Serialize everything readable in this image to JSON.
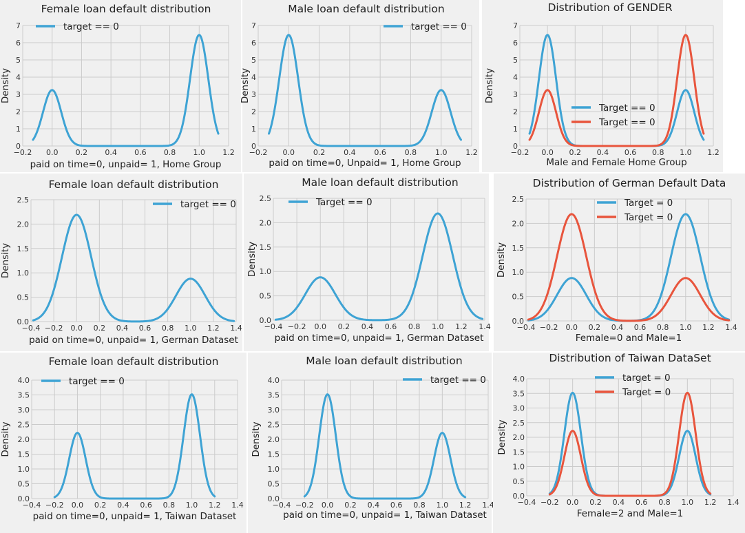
{
  "chart_data": [
    {
      "type": "line",
      "title": "Female loan  default distribution",
      "xlabel": "paid on time=0, unpaid= 1,  Home Group",
      "ylabel": "Density",
      "xlim": [
        -0.2,
        1.2
      ],
      "ylim": [
        0,
        7
      ],
      "xticks": [
        "−0.2",
        "0.0",
        "0.2",
        "0.4",
        "0.6",
        "0.8",
        "1.0",
        "1.2"
      ],
      "yticks": [
        "0",
        "1",
        "2",
        "3",
        "4",
        "5",
        "6",
        "7"
      ],
      "legend_position": "upper-left",
      "series": [
        {
          "name": "target == 0",
          "color": "#3ea3d4",
          "peaks": [
            {
              "x": 0,
              "y": 3.25
            },
            {
              "x": 1,
              "y": 6.45
            }
          ],
          "sigma": 0.062,
          "x_range": [
            -0.13,
            1.13
          ]
        }
      ]
    },
    {
      "type": "line",
      "title": "Male loan  default distribution",
      "xlabel": "paid on time=0, Unpaid= 1,  Home Group",
      "ylabel": "Density",
      "xlim": [
        -0.2,
        1.2
      ],
      "ylim": [
        0,
        7
      ],
      "xticks": [
        "−0.2",
        "0.0",
        "0.2",
        "0.4",
        "0.6",
        "0.8",
        "1.0",
        "1.2"
      ],
      "yticks": [
        "0",
        "1",
        "2",
        "3",
        "4",
        "5",
        "6",
        "7"
      ],
      "legend_position": "upper-right",
      "series": [
        {
          "name": "target == 0",
          "color": "#3ea3d4",
          "peaks": [
            {
              "x": 0,
              "y": 6.45
            },
            {
              "x": 1,
              "y": 3.25
            }
          ],
          "sigma": 0.062,
          "x_range": [
            -0.13,
            1.13
          ]
        }
      ]
    },
    {
      "type": "line",
      "title": "Distribution of GENDER",
      "xlabel": "Male and Female Home Group",
      "ylabel": "Density",
      "xlim": [
        -0.2,
        1.2
      ],
      "ylim": [
        0,
        7
      ],
      "xticks": [
        "−0.2",
        "0.0",
        "0.2",
        "0.4",
        "0.6",
        "0.8",
        "1.0",
        "1.2"
      ],
      "yticks": [
        "0",
        "1",
        "2",
        "3",
        "4",
        "5",
        "6",
        "7"
      ],
      "legend_position": "lower-center",
      "series": [
        {
          "name": "Target == 0",
          "color": "#3ea3d4",
          "peaks": [
            {
              "x": 0,
              "y": 6.45
            },
            {
              "x": 1,
              "y": 3.25
            }
          ],
          "sigma": 0.062,
          "x_range": [
            -0.13,
            1.13
          ]
        },
        {
          "name": "Target == 0",
          "color": "#e8553d",
          "peaks": [
            {
              "x": 0,
              "y": 3.25
            },
            {
              "x": 1,
              "y": 6.45
            }
          ],
          "sigma": 0.062,
          "x_range": [
            -0.13,
            1.13
          ]
        }
      ]
    },
    {
      "type": "line",
      "title": "Female loan  default distribution",
      "xlabel": "paid on time=0, unpaid= 1, German Dataset",
      "ylabel": "Density",
      "xlim": [
        -0.4,
        1.4
      ],
      "ylim": [
        0,
        2.5
      ],
      "xticks": [
        "−0.4",
        "−0.2",
        "0.0",
        "0.2",
        "0.4",
        "0.6",
        "0.8",
        "1.0",
        "1.2",
        "1.4"
      ],
      "yticks": [
        "0.0",
        "0.5",
        "1.0",
        "1.5",
        "2.0",
        "2.5"
      ],
      "legend_position": "upper-right",
      "series": [
        {
          "name": "target == 0",
          "color": "#3ea3d4",
          "peaks": [
            {
              "x": 0,
              "y": 2.19
            },
            {
              "x": 1,
              "y": 0.88
            }
          ],
          "sigma": 0.128,
          "x_range": [
            -0.38,
            1.38
          ]
        }
      ]
    },
    {
      "type": "line",
      "title": "Male loan  default distribution",
      "xlabel": "paid on time=0, unpaid= 1,  German Dataset",
      "ylabel": "Density",
      "xlim": [
        -0.4,
        1.4
      ],
      "ylim": [
        0,
        2.5
      ],
      "xticks": [
        "−0.4",
        "−0.2",
        "0.0",
        "0.2",
        "0.4",
        "0.6",
        "0.8",
        "1.0",
        "1.2",
        "1.4"
      ],
      "yticks": [
        "0.0",
        "0.5",
        "1.0",
        "1.5",
        "2.0",
        "2.5"
      ],
      "legend_position": "upper-left",
      "series": [
        {
          "name": "Target == 0",
          "color": "#3ea3d4",
          "peaks": [
            {
              "x": 0,
              "y": 0.88
            },
            {
              "x": 1,
              "y": 2.19
            }
          ],
          "sigma": 0.128,
          "x_range": [
            -0.38,
            1.38
          ]
        }
      ]
    },
    {
      "type": "line",
      "title": "Distribution of German Default Data",
      "xlabel": "Female=0 and Male=1",
      "ylabel": "Density",
      "xlim": [
        -0.4,
        1.4
      ],
      "ylim": [
        0,
        2.5
      ],
      "xticks": [
        "−0.4",
        "−0.2",
        "0.0",
        "0.2",
        "0.4",
        "0.6",
        "0.8",
        "1.0",
        "1.2",
        "1.4"
      ],
      "yticks": [
        "0.0",
        "0.5",
        "1.0",
        "1.5",
        "2.0",
        "2.5"
      ],
      "legend_position": "upper-center",
      "series": [
        {
          "name": "Target = 0",
          "color": "#3ea3d4",
          "peaks": [
            {
              "x": 0,
              "y": 0.88
            },
            {
              "x": 1,
              "y": 2.19
            }
          ],
          "sigma": 0.128,
          "x_range": [
            -0.38,
            1.38
          ]
        },
        {
          "name": "Target = 0",
          "color": "#e8553d",
          "peaks": [
            {
              "x": 0,
              "y": 2.19
            },
            {
              "x": 1,
              "y": 0.88
            }
          ],
          "sigma": 0.128,
          "x_range": [
            -0.38,
            1.38
          ]
        }
      ]
    },
    {
      "type": "line",
      "title": "Female loan  default distribution",
      "xlabel": "paid on time=0, unpaid= 1,  Taiwan Dataset",
      "ylabel": "Density",
      "xlim": [
        -0.4,
        1.4
      ],
      "ylim": [
        0,
        4
      ],
      "xticks": [
        "−0.4",
        "−0.2",
        "0.0",
        "0.2",
        "0.4",
        "0.6",
        "0.8",
        "1.0",
        "1.2",
        "1.4"
      ],
      "yticks": [
        "0.0",
        "0.5",
        "1.0",
        "1.5",
        "2.0",
        "2.5",
        "3.0",
        "3.5",
        "4.0"
      ],
      "legend_position": "upper-left",
      "series": [
        {
          "name": "target == 0",
          "color": "#3ea3d4",
          "peaks": [
            {
              "x": 0,
              "y": 2.22
            },
            {
              "x": 1,
              "y": 3.52
            }
          ],
          "sigma": 0.072,
          "x_range": [
            -0.2,
            1.2
          ]
        }
      ]
    },
    {
      "type": "line",
      "title": "Male loan default distribution",
      "xlabel": "paid on time=0, unpaid= 1,  Taiwan Dataset",
      "ylabel": "Density",
      "xlim": [
        -0.4,
        1.4
      ],
      "ylim": [
        0,
        4
      ],
      "xticks": [
        "−0.4",
        "−0.2",
        "0.0",
        "0.2",
        "0.4",
        "0.6",
        "0.8",
        "1.0",
        "1.2",
        "1.4"
      ],
      "yticks": [
        "0.0",
        "0.5",
        "1.0",
        "1.5",
        "2.0",
        "2.5",
        "3.0",
        "3.5",
        "4.0"
      ],
      "legend_position": "upper-right",
      "series": [
        {
          "name": "target == 0",
          "color": "#3ea3d4",
          "peaks": [
            {
              "x": 0,
              "y": 3.52
            },
            {
              "x": 1,
              "y": 2.22
            }
          ],
          "sigma": 0.072,
          "x_range": [
            -0.2,
            1.2
          ]
        }
      ]
    },
    {
      "type": "line",
      "title": "Distribution of Taiwan DataSet",
      "xlabel": "Female=2 and Male=1",
      "ylabel": "Density",
      "xlim": [
        -0.4,
        1.4
      ],
      "ylim": [
        0,
        4
      ],
      "xticks": [
        "−0.4",
        "−0.2",
        "0.0",
        "0.2",
        "0.4",
        "0.6",
        "0.8",
        "1.0",
        "1.2",
        "1.4"
      ],
      "yticks": [
        "0.0",
        "0.5",
        "1.0",
        "1.5",
        "2.0",
        "2.5",
        "3.0",
        "3.5",
        "4.0"
      ],
      "legend_position": "upper-center",
      "series": [
        {
          "name": "target = 0",
          "color": "#3ea3d4",
          "peaks": [
            {
              "x": 0,
              "y": 3.52
            },
            {
              "x": 1,
              "y": 2.22
            }
          ],
          "sigma": 0.072,
          "x_range": [
            -0.2,
            1.2
          ]
        },
        {
          "name": "Target = 0",
          "color": "#e8553d",
          "peaks": [
            {
              "x": 0,
              "y": 2.22
            },
            {
              "x": 1,
              "y": 3.52
            }
          ],
          "sigma": 0.072,
          "x_range": [
            -0.2,
            1.2
          ]
        }
      ]
    }
  ]
}
